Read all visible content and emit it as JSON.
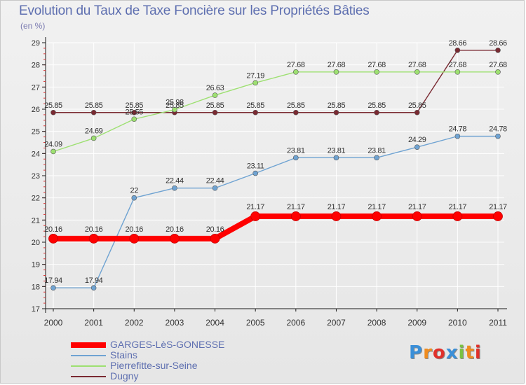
{
  "chart_data": {
    "type": "line",
    "title": "Evolution du Taux de Taxe Foncière sur les Propriétés Bâties",
    "ylabel": "(en %)",
    "xlabel": "",
    "ylim": [
      17,
      29
    ],
    "yticks": [
      "17",
      "18",
      "19",
      "20",
      "21",
      "22",
      "23",
      "24",
      "25",
      "26",
      "27",
      "28",
      "29"
    ],
    "categories": [
      "2000",
      "2001",
      "2002",
      "2003",
      "2004",
      "2005",
      "2006",
      "2007",
      "2008",
      "2009",
      "2010",
      "2011"
    ],
    "series": [
      {
        "name": "GARGES-LèS-GONESSE",
        "color": "#ff0000",
        "values": [
          20.16,
          20.16,
          20.16,
          20.16,
          20.16,
          21.17,
          21.17,
          21.17,
          21.17,
          21.17,
          21.17,
          21.17
        ],
        "labels": [
          "20.16",
          "20.16",
          "20.16",
          "20.16",
          "20.16",
          "21.17",
          "21.17",
          "21.17",
          "21.17",
          "21.17",
          "21.17",
          "21.17"
        ]
      },
      {
        "name": "Stains",
        "color": "#6fa3d2",
        "values": [
          17.94,
          17.94,
          22,
          22.44,
          22.44,
          23.11,
          23.81,
          23.81,
          23.81,
          24.29,
          24.78,
          24.78
        ],
        "labels": [
          "17.94",
          "17.94",
          "22",
          "22.44",
          "22.44",
          "23.11",
          "23.81",
          "23.81",
          "23.81",
          "24.29",
          "24.78",
          "24.78"
        ]
      },
      {
        "name": "Pierrefitte-sur-Seine",
        "color": "#9de071",
        "values": [
          24.09,
          24.69,
          25.55,
          25.98,
          26.63,
          27.19,
          27.68,
          27.68,
          27.68,
          27.68,
          27.68,
          27.68
        ],
        "labels": [
          "24.09",
          "24.69",
          "25.55",
          "25.98",
          "26.63",
          "27.19",
          "27.68",
          "27.68",
          "27.68",
          "27.68",
          "27.68",
          "27.68"
        ]
      },
      {
        "name": "Dugny",
        "color": "#7a2a32",
        "values": [
          25.85,
          25.85,
          25.85,
          25.85,
          25.85,
          25.85,
          25.85,
          25.85,
          25.85,
          25.85,
          28.66,
          28.66
        ],
        "labels": [
          "25.85",
          "25.85",
          "25.85",
          "25.85",
          "25.85",
          "25.85",
          "25.85",
          "25.85",
          "25.85",
          "25.85",
          "28.66",
          "28.66"
        ]
      }
    ],
    "legend_position": "bottom-left"
  },
  "logo": {
    "text": "Proxiti",
    "colors": [
      "#3a8fd8",
      "#f08c1e",
      "#e0302a",
      "#3a8fd8",
      "#7bc142",
      "#f08c1e",
      "#e0302a"
    ]
  }
}
